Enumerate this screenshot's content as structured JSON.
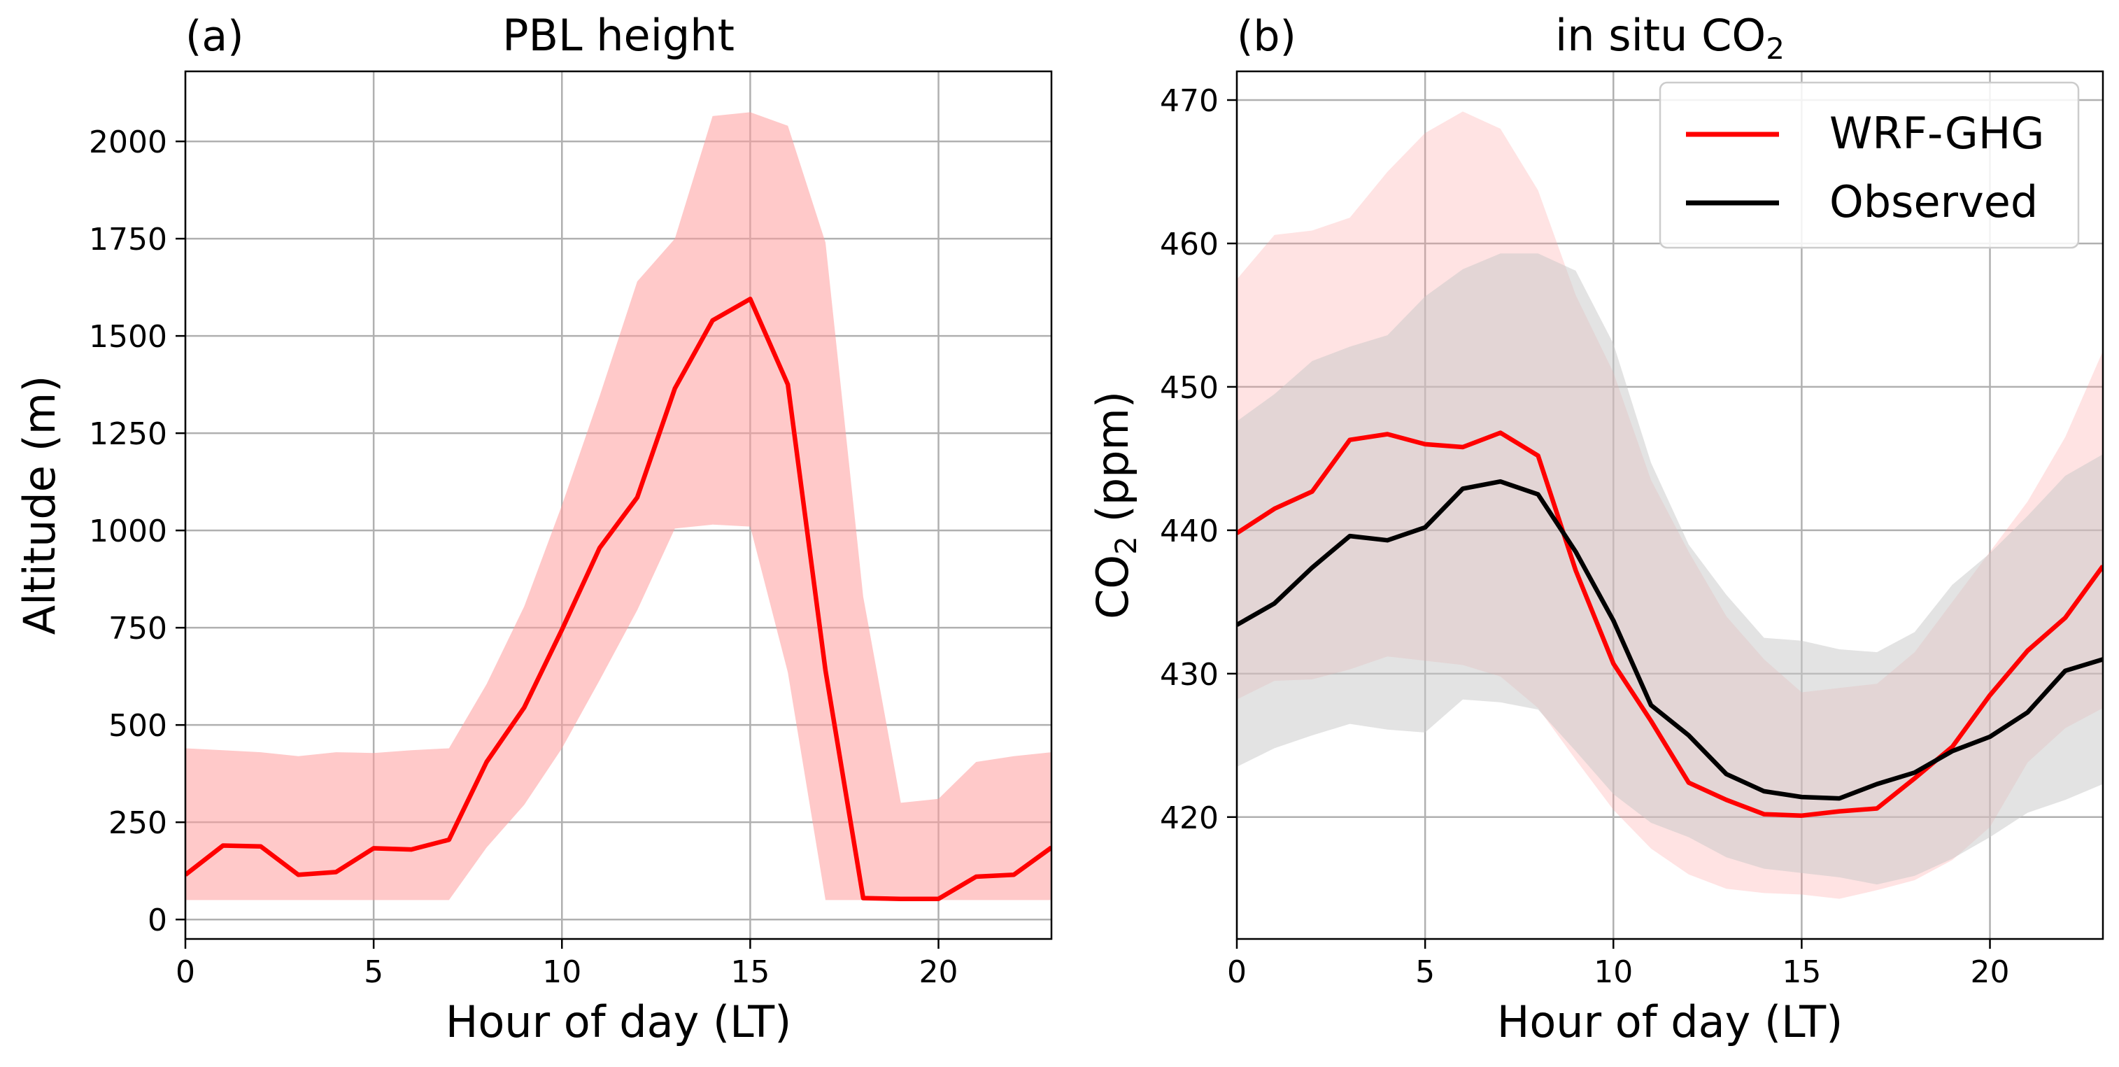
{
  "colors": {
    "model_line": "#ff0000",
    "model_band": "#ff9c9c",
    "observed_line": "#000000",
    "observed_band": "#c8c8c8",
    "grid": "#b0b0b0"
  },
  "chart_data": [
    {
      "type": "line",
      "panel_label": "(a)",
      "title": "PBL height",
      "xlabel": "Hour of day (LT)",
      "ylabel": "Altitude (m)",
      "xlim": [
        0,
        23
      ],
      "ylim": [
        -50,
        2180
      ],
      "xticks": [
        0,
        5,
        10,
        15,
        20
      ],
      "yticks": [
        0,
        250,
        500,
        750,
        1000,
        1250,
        1500,
        1750,
        2000
      ],
      "grid": true,
      "legend": "none",
      "x": [
        0,
        1,
        2,
        3,
        4,
        5,
        6,
        7,
        8,
        9,
        10,
        11,
        12,
        13,
        14,
        15,
        16,
        17,
        18,
        19,
        20,
        21,
        22,
        23
      ],
      "series": [
        {
          "color_key": "model_line",
          "band_color_key": "model_band",
          "band_opacity": 0.55,
          "values": [
            115,
            190,
            188,
            115,
            122,
            183,
            180,
            205,
            405,
            545,
            745,
            955,
            1085,
            1365,
            1540,
            1595,
            1375,
            640,
            55,
            53,
            53,
            110,
            115,
            185
          ],
          "band_low": [
            50,
            50,
            50,
            50,
            50,
            50,
            50,
            50,
            185,
            295,
            440,
            615,
            795,
            1005,
            1015,
            1010,
            635,
            50,
            50,
            50,
            50,
            50,
            50,
            50
          ],
          "band_high": [
            440,
            435,
            430,
            420,
            430,
            428,
            435,
            440,
            605,
            805,
            1065,
            1345,
            1640,
            1750,
            2065,
            2075,
            2040,
            1740,
            830,
            300,
            310,
            405,
            420,
            430
          ]
        }
      ]
    },
    {
      "type": "line",
      "panel_label": "(b)",
      "title": "in situ CO",
      "title_sub": "2",
      "xlabel": "Hour of day (LT)",
      "ylabel": "CO",
      "ylabel_sub": "2",
      "ylabel_rest": " (ppm)",
      "xlim": [
        0,
        23
      ],
      "ylim": [
        411.5,
        472
      ],
      "xticks": [
        0,
        5,
        10,
        15,
        20
      ],
      "yticks": [
        420,
        430,
        440,
        450,
        460,
        470
      ],
      "grid": true,
      "legend": "top-right",
      "x": [
        0,
        1,
        2,
        3,
        4,
        5,
        6,
        7,
        8,
        9,
        10,
        11,
        12,
        13,
        14,
        15,
        16,
        17,
        18,
        19,
        20,
        21,
        22,
        23
      ],
      "series": [
        {
          "name": "WRF-GHG",
          "color_key": "model_line",
          "band_color_key": "model_band",
          "band_opacity": 0.28,
          "values": [
            439.8,
            441.5,
            442.7,
            446.3,
            446.7,
            446.0,
            445.8,
            446.8,
            445.2,
            437.2,
            430.7,
            426.7,
            422.4,
            421.2,
            420.2,
            420.1,
            420.4,
            420.6,
            422.7,
            424.9,
            428.5,
            431.6,
            433.9,
            437.5
          ],
          "band_low": [
            428.2,
            429.5,
            429.6,
            430.3,
            431.2,
            430.9,
            430.6,
            429.8,
            427.6,
            424.0,
            420.5,
            417.8,
            416.0,
            415.0,
            414.7,
            414.6,
            414.3,
            414.9,
            415.6,
            417.0,
            419.3,
            423.8,
            426.2,
            427.6
          ],
          "band_high": [
            457.5,
            460.6,
            460.9,
            461.8,
            465.0,
            467.7,
            469.2,
            468.0,
            463.7,
            456.4,
            451.0,
            443.5,
            438.5,
            434.0,
            431.0,
            428.7,
            429.0,
            429.3,
            431.5,
            435.0,
            438.5,
            442.0,
            446.5,
            452.5
          ]
        },
        {
          "name": "Observed",
          "color_key": "observed_line",
          "band_color_key": "observed_band",
          "band_opacity": 0.5,
          "values": [
            433.4,
            434.9,
            437.4,
            439.6,
            439.3,
            440.2,
            442.9,
            443.4,
            442.5,
            438.5,
            433.7,
            427.8,
            425.7,
            423.0,
            421.8,
            421.4,
            421.3,
            422.3,
            423.1,
            424.6,
            425.6,
            427.3,
            430.2,
            431.0
          ],
          "band_low": [
            423.5,
            424.8,
            425.7,
            426.5,
            426.1,
            425.9,
            428.2,
            428.0,
            427.5,
            424.6,
            421.6,
            419.6,
            418.6,
            417.2,
            416.4,
            416.1,
            415.8,
            415.3,
            415.9,
            417.1,
            418.6,
            420.3,
            421.2,
            422.3
          ],
          "band_high": [
            447.6,
            449.5,
            451.8,
            452.8,
            453.6,
            456.3,
            458.2,
            459.3,
            459.3,
            458.1,
            453.0,
            444.7,
            439.0,
            435.5,
            432.5,
            432.3,
            431.7,
            431.5,
            432.9,
            436.2,
            438.4,
            441.0,
            443.8,
            445.3
          ]
        }
      ]
    }
  ]
}
